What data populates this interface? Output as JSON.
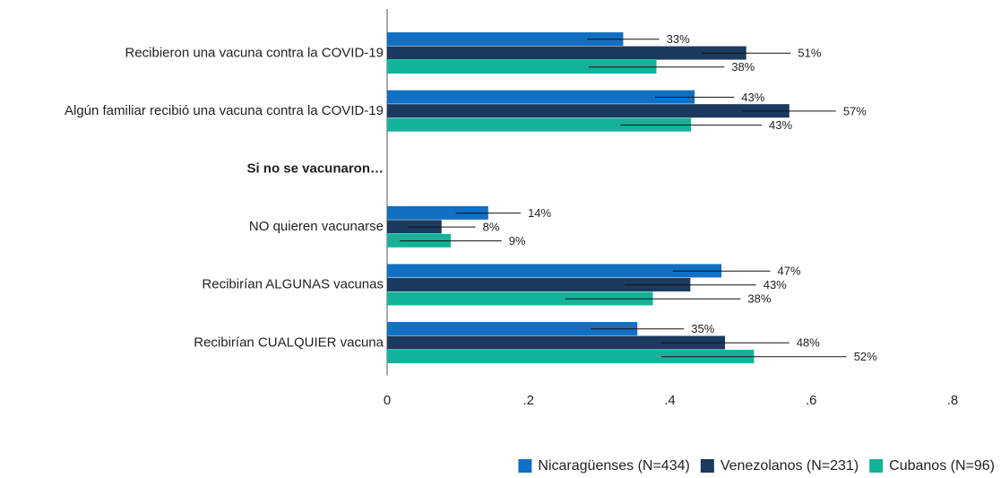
{
  "chart_data": {
    "type": "bar",
    "orientation": "horizontal",
    "categories": [
      "Recibieron una vacuna contra la COVID-19",
      "Algún familiar recibió una vacuna contra la COVID-19",
      "Si no se vacunaron…",
      "NO quieren vacunarse",
      "Recibirían ALGUNAS vacunas",
      "Recibirían CUALQUIER vacuna"
    ],
    "series": [
      {
        "name": "Nicaragüenses (N=434)",
        "color": "#1170c4",
        "values": [
          0.334,
          0.435,
          null,
          0.143,
          0.473,
          0.354
        ],
        "errors": [
          0.051,
          0.056,
          null,
          0.046,
          0.069,
          0.066
        ],
        "value_labels": [
          "33%",
          "43%",
          null,
          "14%",
          "47%",
          "35%"
        ]
      },
      {
        "name": "Venezolanos (N=231)",
        "color": "#1b3a5f",
        "values": [
          0.508,
          0.569,
          null,
          0.077,
          0.429,
          0.478
        ],
        "errors": [
          0.063,
          0.066,
          null,
          0.048,
          0.093,
          0.091
        ],
        "value_labels": [
          "51%",
          "57%",
          null,
          "8%",
          "43%",
          "48%"
        ]
      },
      {
        "name": "Cubanos (N=96)",
        "color": "#13b39a",
        "values": [
          0.381,
          0.43,
          null,
          0.09,
          0.376,
          0.519
        ],
        "errors": [
          0.096,
          0.1,
          null,
          0.072,
          0.124,
          0.131
        ],
        "value_labels": [
          "38%",
          "43%",
          null,
          "9%",
          "38%",
          "52%"
        ]
      }
    ],
    "xlim": [
      0,
      0.86
    ],
    "xticks": [
      0,
      {
        "value": 0.2,
        "label": ".2"
      },
      {
        "value": 0.4,
        "label": ".4"
      },
      {
        "value": 0.6,
        "label": ".6"
      },
      {
        "value": 0.8,
        "label": ".8"
      }
    ],
    "legend": "bottom-right"
  }
}
